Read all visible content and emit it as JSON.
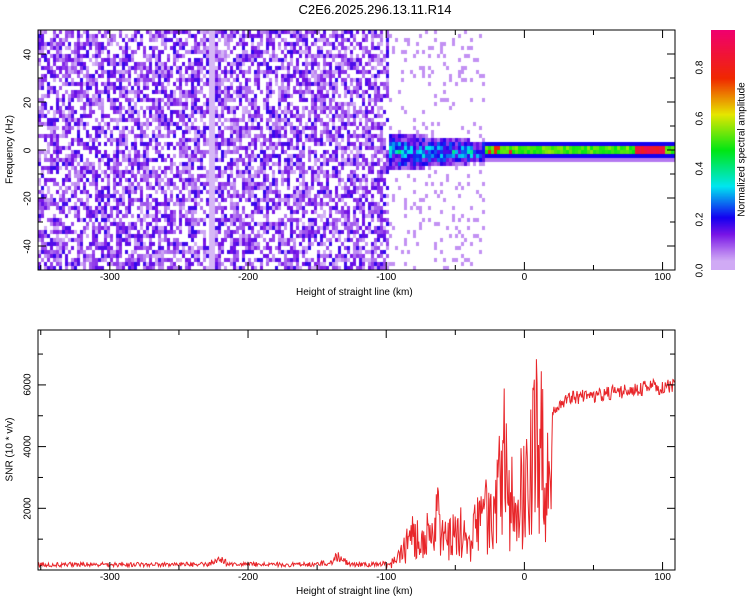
{
  "chart_data": [
    {
      "type": "heatmap",
      "title": "C2E6.2025.296.13.11.R14",
      "xlabel": "Height of straight line (km)",
      "ylabel": "Frequency (Hz)",
      "xlim": [
        -352,
        109
      ],
      "ylim": [
        -50,
        50
      ],
      "xticks": [
        -300,
        -200,
        -100,
        0,
        100
      ],
      "yticks": [
        -40,
        -20,
        0,
        20,
        40
      ],
      "colorbar": {
        "label": "Normalized spectral amplitude",
        "range": [
          0,
          0.95
        ],
        "ticks": [
          "0.0",
          "0.2",
          "0.4",
          "0.6",
          "0.8"
        ]
      },
      "regions": [
        {
          "x_range": [
            -352,
            -100
          ],
          "freq_range": [
            -50,
            50
          ],
          "description": "broadband noise",
          "amplitude": 0.15
        },
        {
          "x_range": [
            -100,
            -30
          ],
          "freq_range": [
            -8,
            8
          ],
          "description": "emerging signal",
          "amplitude": 0.35
        },
        {
          "x_range": [
            -30,
            109
          ],
          "freq_range": [
            -2,
            3
          ],
          "description": "narrow carrier near 0 Hz",
          "amplitude": 0.55
        }
      ]
    },
    {
      "type": "line",
      "xlabel": "Height of straight line (km)",
      "ylabel": "SNR (10 * v/v)",
      "xlim": [
        -352,
        109
      ],
      "ylim": [
        0,
        7780
      ],
      "xticks": [
        -300,
        -200,
        -100,
        0,
        100
      ],
      "yticks": [
        2000,
        4000,
        6000
      ],
      "series": [
        {
          "name": "SNR",
          "color": "#e8262a",
          "x_start": -350,
          "x_step": 5,
          "values": [
            250,
            260,
            240,
            250,
            270,
            250,
            240,
            260,
            250,
            250,
            260,
            250,
            240,
            250,
            260,
            250,
            250,
            240,
            250,
            260,
            250,
            260,
            250,
            270,
            250,
            400,
            500,
            300,
            260,
            250,
            250,
            260,
            250,
            240,
            250,
            260,
            250,
            250,
            260,
            250,
            270,
            300,
            350,
            700,
            400,
            260,
            250,
            250,
            260,
            250,
            300,
            400,
            700,
            1500,
            2200,
            1500,
            2000,
            2500,
            3200,
            1800,
            2000,
            2200,
            1500,
            2500,
            3000,
            3200,
            3500,
            6500,
            3500,
            4500,
            4000,
            5500,
            7700,
            5000,
            5300,
            5500,
            5700,
            5800,
            5800,
            5900,
            5900,
            5900,
            6000,
            6000,
            6000,
            6100,
            6100,
            6100,
            6200,
            6200,
            6100,
            6200
          ]
        }
      ]
    }
  ]
}
